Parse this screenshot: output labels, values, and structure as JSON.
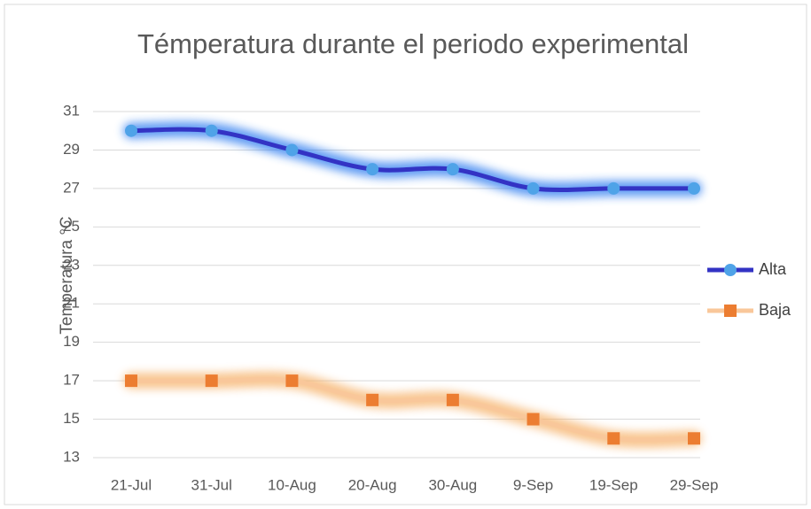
{
  "chart_data": {
    "type": "line",
    "title": "Témperatura durante el periodo experimental",
    "y_label": "Temperatura °C",
    "categories": [
      "21-Jul",
      "31-Jul",
      "10-Aug",
      "20-Aug",
      "30-Aug",
      "9-Sep",
      "19-Sep",
      "29-Sep"
    ],
    "series": [
      {
        "name": "Alta",
        "color": "#3333c4",
        "marker_color": "#4fa3e8",
        "glow_color": "#2f7df0",
        "marker": "circle",
        "values": [
          30,
          30,
          29,
          28,
          28,
          27,
          27,
          27
        ]
      },
      {
        "name": "Baja",
        "color": "#f9c79a",
        "marker_color": "#ec7d31",
        "glow_color": "#f6b26b",
        "marker": "square",
        "values": [
          17,
          17,
          17,
          16,
          16,
          15,
          14,
          14
        ]
      }
    ],
    "ylim": [
      13,
      31
    ],
    "yticks": [
      13,
      15,
      17,
      19,
      21,
      23,
      25,
      27,
      29,
      31
    ],
    "grid": true,
    "smooth": true,
    "legend": "right"
  }
}
